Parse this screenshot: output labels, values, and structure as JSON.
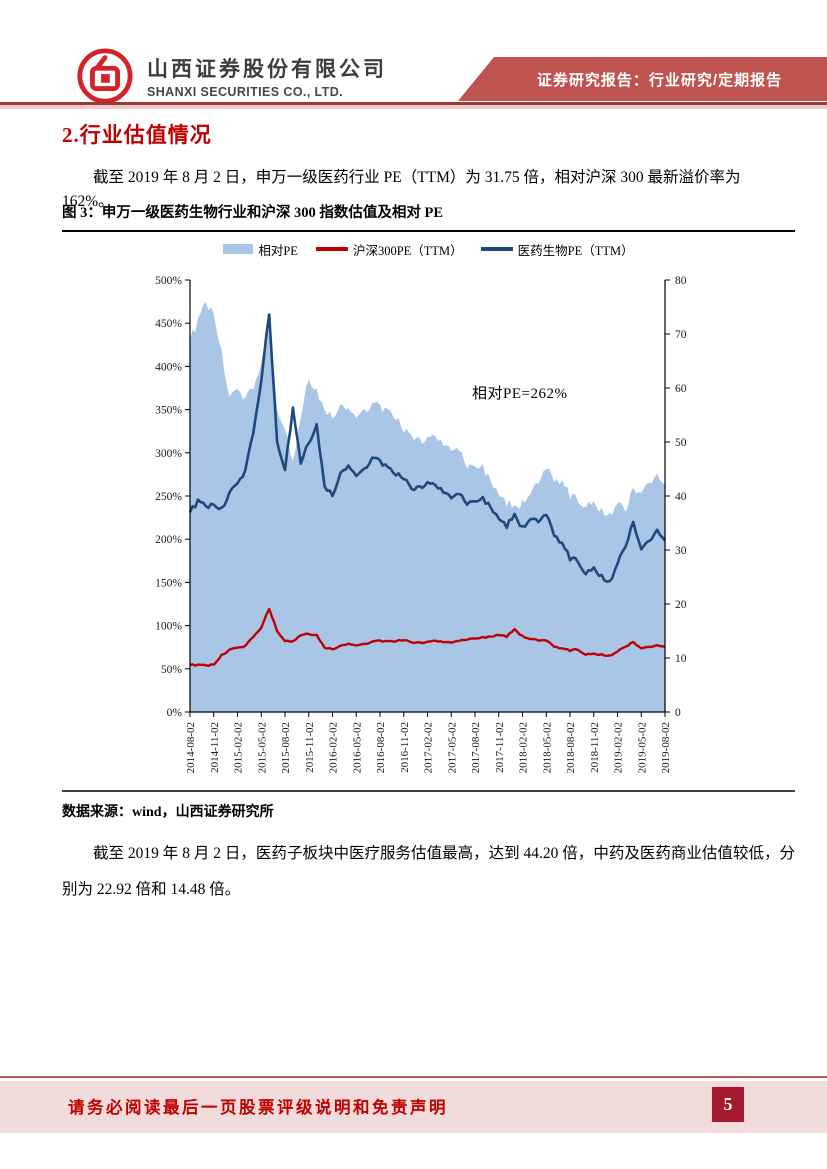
{
  "header": {
    "company_cn": "山西证券股份有限公司",
    "company_en": "SHANXI SECURITIES CO., LTD.",
    "banner": "证券研究报告：行业研究/定期报告"
  },
  "section_title": "2.行业估值情况",
  "paragraph_1": "截至 2019 年 8 月 2 日，申万一级医药行业 PE（TTM）为 31.75 倍，相对沪深 300 最新溢价率为 162%。",
  "figure": {
    "caption": "图 3：申万一级医药生物行业和沪深 300 指数估值及相对 PE",
    "source": "数据来源：wind，山西证券研究所"
  },
  "paragraph_2": "截至 2019 年 8 月 2 日，医药子板块中医疗服务估值最高，达到 44.20 倍，中药及医药商业估值较低，分别为 22.92 倍和 14.48 倍。",
  "footer": {
    "disclaimer": "请务必阅读最后一页股票评级说明和免责声明",
    "page_number": "5"
  },
  "colors": {
    "accent_red": "#C00000",
    "banner_red": "#BE5350",
    "footer_pink": "#F2DCDB",
    "badge_red": "#A6192E",
    "logo_red": "#D2232A"
  },
  "chart_data": {
    "type": "area+line",
    "title": "申万一级医药生物行业和沪深300指数估值及相对PE",
    "annotation": "相对PE=262%",
    "grid": false,
    "legend_position": "top",
    "left_axis": {
      "range": [
        0,
        500
      ],
      "tick_step": 50,
      "unit": "%",
      "tick_labels": [
        "0%",
        "50%",
        "100%",
        "150%",
        "200%",
        "250%",
        "300%",
        "350%",
        "400%",
        "450%",
        "500%"
      ]
    },
    "right_axis": {
      "range": [
        0,
        80
      ],
      "tick_step": 10,
      "tick_labels": [
        "0",
        "10",
        "20",
        "30",
        "40",
        "50",
        "60",
        "70",
        "80"
      ]
    },
    "x_axis": {
      "start": "2014-08-02",
      "end": "2019-08-02",
      "interval": "monthly",
      "tick_labels": [
        "2014-08-02",
        "2014-11-02",
        "2015-02-02",
        "2015-05-02",
        "2015-08-02",
        "2015-11-02",
        "2016-02-02",
        "2016-05-02",
        "2016-08-02",
        "2016-11-02",
        "2017-02-02",
        "2017-05-02",
        "2017-08-02",
        "2017-11-02",
        "2018-02-02",
        "2018-05-02",
        "2018-08-02",
        "2018-11-02",
        "2019-02-02",
        "2019-05-02",
        "2019-08-02"
      ]
    },
    "series": [
      {
        "name": "相对PE",
        "type": "area",
        "axis": "left",
        "unit": "%",
        "color": "#A9C6E7",
        "values": [
          430,
          452,
          473,
          462,
          415,
          362,
          370,
          366,
          377,
          400,
          458,
          350,
          330,
          286,
          340,
          388,
          370,
          352,
          340,
          353,
          350,
          344,
          350,
          356,
          354,
          346,
          340,
          328,
          316,
          313,
          318,
          319,
          312,
          301,
          304,
          283,
          284,
          283,
          269,
          248,
          243,
          237,
          241,
          256,
          262,
          281,
          271,
          264,
          251,
          246,
          237,
          247,
          232,
          228,
          242,
          237,
          257,
          258,
          263,
          273,
          262
        ]
      },
      {
        "name": "沪深300PE（TTM）",
        "type": "line",
        "axis": "right",
        "color": "#C00000",
        "values": [
          8.7,
          8.7,
          8.6,
          8.8,
          10.5,
          11.5,
          11.8,
          12.3,
          14,
          15.5,
          19.2,
          15,
          13.2,
          13,
          14.2,
          14.5,
          14.2,
          12,
          11.6,
          12.2,
          12.6,
          12.4,
          12.6,
          13,
          13.2,
          13,
          13.1,
          13.4,
          12.8,
          12.8,
          13,
          13.2,
          13,
          12.8,
          13.2,
          13.4,
          13.6,
          13.8,
          14,
          14.2,
          14,
          15.3,
          14,
          13.6,
          13.2,
          13.2,
          12.2,
          11.7,
          11.4,
          11.6,
          10.6,
          10.9,
          10.6,
          10.4,
          11.2,
          12.2,
          12.9,
          11.9,
          12,
          12.3,
          12.1
        ]
      },
      {
        "name": "医药生物PE（TTM）",
        "type": "line",
        "axis": "right",
        "color": "#1F497D",
        "values": [
          37,
          39,
          38,
          38.5,
          37.5,
          40.5,
          42,
          45,
          52,
          61,
          74,
          50,
          45,
          56,
          46,
          50,
          53,
          42,
          40,
          44,
          45.5,
          44,
          45,
          47,
          46.5,
          45,
          44,
          43.5,
          41,
          41.5,
          42.5,
          42,
          41,
          39.5,
          40.5,
          38.5,
          39,
          39.5,
          38,
          35.5,
          34.5,
          36.5,
          34,
          36,
          35,
          36.5,
          33,
          31,
          28.5,
          28,
          25.5,
          27,
          25,
          24,
          27.5,
          31,
          35,
          30.5,
          31.5,
          33.5,
          31.75
        ]
      }
    ],
    "latest_values": {
      "pharma_pe_ttm": 31.75,
      "relative_pe_pct": 262,
      "premium_pct": 162
    }
  }
}
